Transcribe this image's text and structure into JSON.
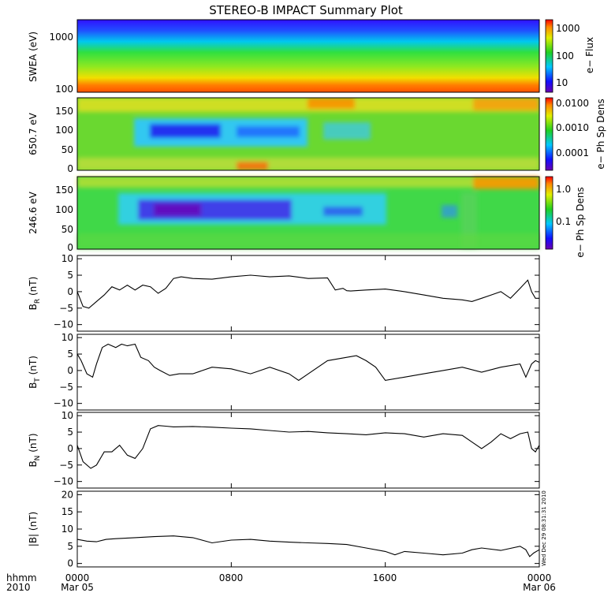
{
  "title": "STEREO-B IMPACT Summary Plot",
  "stamp": "Wed Dec 29 08:31:31 2010",
  "time_axis": {
    "corner_label_1": "hhmm",
    "corner_label_2": "2010",
    "ticks": [
      {
        "hhmm": "0000",
        "date": "Mar 05",
        "hour": 0
      },
      {
        "hhmm": "0800",
        "date": "",
        "hour": 8
      },
      {
        "hhmm": "1600",
        "date": "",
        "hour": 16
      },
      {
        "hhmm": "0000",
        "date": "Mar 06",
        "hour": 24
      }
    ],
    "range_hours": [
      0,
      24
    ]
  },
  "spectrograms": [
    {
      "ylabel": "SWEA (eV)",
      "yticks": [
        "1000",
        "100"
      ],
      "colorbar_label": "e− Flux",
      "colorbar_ticks": [
        "1000",
        "100",
        "10"
      ],
      "colors": {
        "bg": "#12a040",
        "pattern": "energy"
      }
    },
    {
      "ylabel": "650.7 eV",
      "yticks": [
        "150",
        "100",
        "50",
        "0"
      ],
      "colorbar_label": "e− Ph Sp Dens",
      "colorbar_ticks": [
        "0.0100",
        "0.0010",
        "0.0001"
      ],
      "colors": {
        "pattern": "pitch"
      }
    },
    {
      "ylabel": "246.6 eV",
      "yticks": [
        "150",
        "100",
        "50",
        "0"
      ],
      "colorbar_label": "e− Ph Sp Dens",
      "colorbar_ticks": [
        "1.0",
        "0.1"
      ],
      "colors": {
        "pattern": "pitch"
      }
    }
  ],
  "chart_data": [
    {
      "type": "line",
      "ylabel": "B",
      "ylabel_sub": "R",
      "ylabel_unit": " (nT)",
      "ylim": [
        -12,
        11
      ],
      "yticks": [
        "10",
        "5",
        "0",
        "−5",
        "−10"
      ],
      "ytick_values": [
        10,
        5,
        0,
        -5,
        -10
      ],
      "x": [
        0,
        0.3,
        0.6,
        1,
        1.4,
        1.8,
        2.2,
        2.6,
        3,
        3.4,
        3.8,
        4.2,
        4.6,
        5,
        5.4,
        6,
        7,
        8,
        9,
        10,
        11,
        12,
        13,
        13.4,
        13.8,
        14,
        14.2,
        15,
        16,
        17,
        18,
        19,
        20,
        20.5,
        21,
        21.5,
        22,
        22.5,
        23,
        23.4,
        23.6,
        23.8,
        24
      ],
      "y": [
        0,
        -4.5,
        -5,
        -3,
        -1,
        1.5,
        0.5,
        2,
        0.5,
        2,
        1.5,
        -0.5,
        1,
        4,
        4.5,
        4,
        3.8,
        4.5,
        5,
        4.5,
        4.8,
        4,
        4.2,
        0.5,
        1,
        0.3,
        0.2,
        0.5,
        0.8,
        0,
        -1,
        -2,
        -2.5,
        -3,
        -2,
        -1,
        0,
        -2,
        1,
        3.5,
        0,
        -2,
        -2
      ]
    },
    {
      "type": "line",
      "ylabel": "B",
      "ylabel_sub": "T",
      "ylabel_unit": " (nT)",
      "ylim": [
        -12,
        11
      ],
      "yticks": [
        "10",
        "5",
        "0",
        "−5",
        "−10"
      ],
      "ytick_values": [
        10,
        5,
        0,
        -5,
        -10
      ],
      "x": [
        0,
        0.2,
        0.5,
        0.8,
        1,
        1.3,
        1.6,
        2,
        2.3,
        2.6,
        3,
        3.3,
        3.7,
        4,
        4.3,
        4.8,
        5.3,
        6,
        7,
        8,
        9,
        10,
        11,
        11.5,
        12,
        13,
        14,
        14.5,
        15,
        15.5,
        16,
        17,
        18,
        19,
        20,
        21,
        22,
        23,
        23.3,
        23.6,
        23.8,
        24
      ],
      "y": [
        5,
        3,
        -1,
        -2,
        2,
        7,
        8,
        7,
        8,
        7.5,
        8,
        4,
        3,
        1,
        0,
        -1.5,
        -1,
        -1,
        1,
        0.5,
        -1,
        1,
        -1,
        -3,
        -1,
        3,
        4,
        4.5,
        3,
        1,
        -3,
        -2,
        -1,
        0,
        1,
        -0.5,
        1,
        2,
        -2,
        2,
        3,
        2.5
      ]
    },
    {
      "type": "line",
      "ylabel": "B",
      "ylabel_sub": "N",
      "ylabel_unit": " (nT)",
      "ylim": [
        -12,
        11
      ],
      "yticks": [
        "10",
        "5",
        "0",
        "−5",
        "−10"
      ],
      "ytick_values": [
        10,
        5,
        0,
        -5,
        -10
      ],
      "x": [
        0,
        0.3,
        0.7,
        1,
        1.4,
        1.8,
        2.2,
        2.6,
        3,
        3.4,
        3.8,
        4.2,
        4.6,
        5,
        6,
        7,
        8,
        9,
        10,
        11,
        12,
        13,
        14,
        15,
        16,
        17,
        18,
        19,
        20,
        20.5,
        21,
        21.5,
        22,
        22.5,
        23,
        23.4,
        23.6,
        23.8,
        24
      ],
      "y": [
        1,
        -4,
        -6,
        -5,
        -1,
        -1,
        1,
        -2,
        -3,
        0,
        6,
        7,
        6.8,
        6.6,
        6.7,
        6.5,
        6.2,
        6,
        5.5,
        5,
        5.2,
        4.8,
        4.5,
        4.2,
        4.8,
        4.5,
        3.5,
        4.5,
        4,
        2,
        0,
        2,
        4.5,
        3,
        4.5,
        5,
        0,
        -1,
        1
      ]
    },
    {
      "type": "line",
      "ylabel": "|B|",
      "ylabel_sub": "",
      "ylabel_unit": " (nT)",
      "ylim": [
        -1,
        21
      ],
      "yticks": [
        "20",
        "15",
        "10",
        "5",
        "0"
      ],
      "ytick_values": [
        20,
        15,
        10,
        5,
        0
      ],
      "x": [
        0,
        0.5,
        1,
        1.5,
        2,
        3,
        4,
        5,
        6,
        7,
        8,
        9,
        10,
        11,
        12,
        13,
        14,
        15,
        16,
        16.5,
        17,
        18,
        19,
        20,
        20.5,
        21,
        22,
        23,
        23.3,
        23.5,
        23.7,
        24
      ],
      "y": [
        7,
        6.5,
        6.3,
        7,
        7.2,
        7.5,
        7.8,
        8,
        7.5,
        6,
        6.8,
        7,
        6.5,
        6.2,
        6,
        5.8,
        5.5,
        4.5,
        3.5,
        2.5,
        3.5,
        3,
        2.5,
        3,
        4,
        4.5,
        3.8,
        5,
        4,
        2,
        3,
        4
      ]
    }
  ]
}
